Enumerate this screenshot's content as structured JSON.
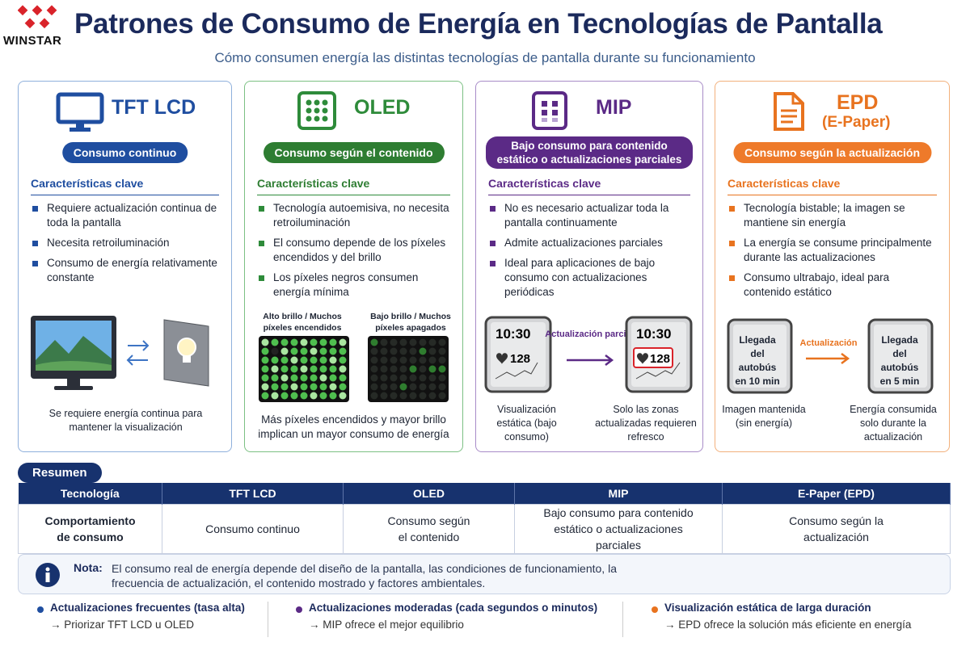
{
  "header": {
    "logo": "WINSTAR",
    "title": "Patrones de Consumo de Energía en Tecnologías de Pantalla",
    "subtitle": "Cómo consumen energía las distintas tecnologías de pantalla durante su funcionamiento"
  },
  "cards": [
    {
      "name": "TFT LCD",
      "badge": "Consumo continuo",
      "section": "Características clave",
      "bullets": [
        "Requiere actualización continua de toda la pantalla",
        "Necesita retroiluminación",
        "Consumo de energía relativamente constante"
      ],
      "caption": "Se requiere energía continua para mantener la visualización"
    },
    {
      "name": "OLED",
      "badge": "Consumo según el contenido",
      "section": "Características clave",
      "bullets": [
        "Tecnología autoemisiva, no necesita retroiluminación",
        "El consumo depende de los píxeles encendidos y del brillo",
        "Los píxeles negros consumen energía mínima"
      ],
      "panels": [
        "Alto brillo / Muchos píxeles encendidos",
        "Bajo brillo / Muchos píxeles apagados"
      ],
      "caption": "Más píxeles encendidos y mayor brillo implican un mayor consumo de energía"
    },
    {
      "name": "MIP",
      "badge": "Bajo consumo para contenido estático o actualizaciones parciales",
      "section": "Características clave",
      "bullets": [
        "No es necesario actualizar toda la pantalla continuamente",
        "Admite actualizaciones parciales",
        "Ideal para aplicaciones de bajo consumo con actualizaciones periódicas"
      ],
      "screens": [
        {
          "time": "10:30",
          "reading": "128"
        },
        {
          "time": "10:30",
          "reading": "128"
        }
      ],
      "arrow": "Actualización parcial",
      "captions": [
        "Visualización estática (bajo consumo)",
        "Solo las zonas actualizadas requieren refresco"
      ]
    },
    {
      "name": "EPD",
      "sub": "(E-Paper)",
      "badge": "Consumo según la actualización",
      "section": "Características clave",
      "bullets": [
        "Tecnología bistable; la imagen se mantiene sin energía",
        "La energía se consume principalmente durante las actualizaciones",
        "Consumo ultrabajo, ideal para contenido estático"
      ],
      "screens": [
        "Llegada del autobús en 10 min",
        "Llegada del autobús en 5 min"
      ],
      "arrow": "Actualización",
      "captions": [
        "Imagen mantenida (sin energía)",
        "Energía consumida solo durante la actualización"
      ]
    }
  ],
  "summary": {
    "label": "Resumen",
    "header": [
      "Tecnología",
      "TFT LCD",
      "OLED",
      "MIP",
      "E-Paper (EPD)"
    ],
    "row": [
      "Comportamiento de consumo",
      "Consumo continuo",
      "Consumo según el contenido",
      "Bajo consumo para contenido estático o actualizaciones parciales",
      "Consumo según la actualización"
    ]
  },
  "note": {
    "label": "Nota:",
    "text": "El consumo real de energía depende del diseño de la pantalla, las condiciones de funcionamiento, la frecuencia de actualización, el contenido mostrado y factores ambientales."
  },
  "footer": [
    {
      "title": "Actualizaciones frecuentes (tasa alta)",
      "text": "→ Priorizar TFT LCD u OLED"
    },
    {
      "title": "Actualizaciones moderadas (cada segundos o minutos)",
      "text": "→ MIP ofrece el mejor equilibrio"
    },
    {
      "title": "Visualización estática de larga duración",
      "text": "→ EPD ofrece la solución más eficiente en energía"
    }
  ]
}
